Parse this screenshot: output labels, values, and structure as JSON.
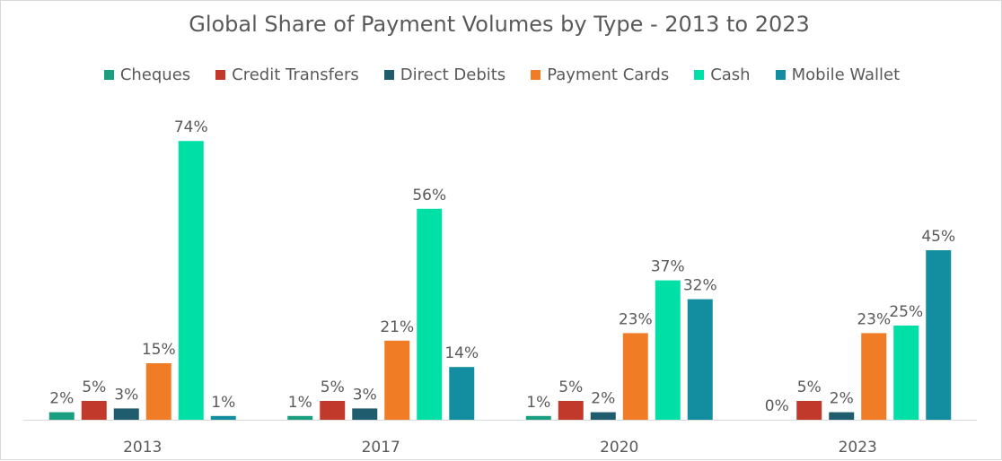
{
  "chart_data": {
    "type": "bar",
    "title": "Global Share of Payment Volumes by Type - 2013 to 2023",
    "categories": [
      "2013",
      "2017",
      "2020",
      "2023"
    ],
    "series": [
      {
        "name": "Cheques",
        "color": "#1a9e80",
        "values": [
          2,
          1,
          1,
          0
        ],
        "labels": [
          "2%",
          "1%",
          "1%",
          "0%"
        ]
      },
      {
        "name": "Credit Transfers",
        "color": "#c0392b",
        "values": [
          5,
          5,
          5,
          5
        ],
        "labels": [
          "5%",
          "5%",
          "5%",
          "5%"
        ]
      },
      {
        "name": "Direct Debits",
        "color": "#1f5c6e",
        "values": [
          3,
          3,
          2,
          2
        ],
        "labels": [
          "3%",
          "3%",
          "2%",
          "2%"
        ]
      },
      {
        "name": "Payment Cards",
        "color": "#f07c25",
        "values": [
          15,
          21,
          23,
          23
        ],
        "labels": [
          "15%",
          "21%",
          "23%",
          "23%"
        ]
      },
      {
        "name": "Cash",
        "color": "#00e0a6",
        "values": [
          74,
          56,
          37,
          25
        ],
        "labels": [
          "74%",
          "56%",
          "37%",
          "25%"
        ]
      },
      {
        "name": "Mobile Wallet",
        "color": "#138ea0",
        "values": [
          1,
          14,
          32,
          45
        ],
        "labels": [
          "1%",
          "14%",
          "32%",
          "45%"
        ]
      }
    ],
    "ylim": [
      0,
      80
    ],
    "legend_position": "top",
    "grid": false
  }
}
